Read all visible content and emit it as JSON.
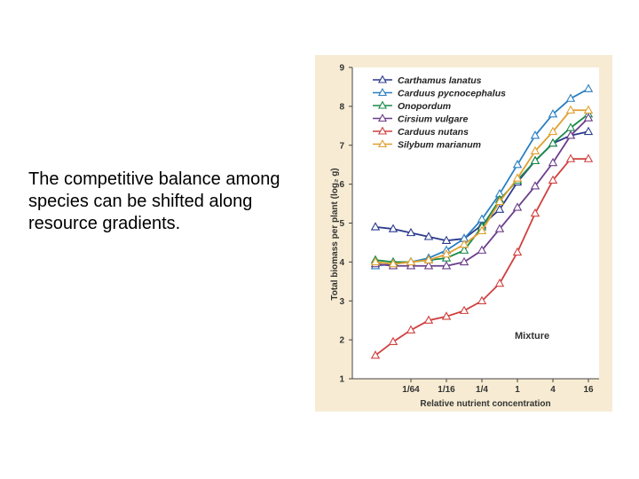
{
  "slide": {
    "text": "The competitive balance among species can be shifted along resource gradients."
  },
  "chart_data": {
    "type": "line",
    "title": "",
    "xlabel": "Relative nutrient concentration",
    "ylabel": "Total biomass per plant (log₂ g)",
    "x_scale": "log2",
    "x_ticks": [
      {
        "value": 0.015625,
        "label": "1/64"
      },
      {
        "value": 0.0625,
        "label": "1/16"
      },
      {
        "value": 0.25,
        "label": "1/4"
      },
      {
        "value": 1,
        "label": "1"
      },
      {
        "value": 4,
        "label": "4"
      },
      {
        "value": 16,
        "label": "16"
      }
    ],
    "ylim": [
      1,
      9
    ],
    "y_ticks": [
      1,
      2,
      3,
      4,
      5,
      6,
      7,
      8,
      9
    ],
    "grid": false,
    "legend_position": "top-left",
    "annotation": "Mixture",
    "x": [
      0.00390625,
      0.0078125,
      0.015625,
      0.03125,
      0.0625,
      0.125,
      0.25,
      0.5,
      1,
      2,
      4,
      8,
      16
    ],
    "series": [
      {
        "name": "Carthamus lanatus",
        "color": "#2a3a8c",
        "values": [
          4.9,
          4.85,
          4.75,
          4.65,
          4.55,
          4.6,
          4.95,
          5.35,
          6.05,
          6.6,
          7.05,
          7.25,
          7.35
        ]
      },
      {
        "name": "Carduus pycnocephalus",
        "color": "#2a7fc0",
        "values": [
          3.9,
          3.95,
          4.0,
          4.1,
          4.3,
          4.6,
          5.1,
          5.75,
          6.5,
          7.25,
          7.8,
          8.2,
          8.45
        ]
      },
      {
        "name": "Onopordum",
        "color": "#1a8a4a",
        "values": [
          4.05,
          4.0,
          4.0,
          4.05,
          4.1,
          4.3,
          4.9,
          5.6,
          6.1,
          6.6,
          7.05,
          7.45,
          7.8
        ]
      },
      {
        "name": "Cirsium vulgare",
        "color": "#6a3d8a",
        "values": [
          3.95,
          3.9,
          3.9,
          3.9,
          3.9,
          4.0,
          4.3,
          4.85,
          5.4,
          5.95,
          6.55,
          7.25,
          7.7
        ]
      },
      {
        "name": "Carduus nutans",
        "color": "#d0403f",
        "values": [
          1.6,
          1.95,
          2.25,
          2.5,
          2.6,
          2.75,
          3.0,
          3.45,
          4.25,
          5.25,
          6.1,
          6.65,
          6.65
        ]
      },
      {
        "name": "Silybum marianum",
        "color": "#e0a030",
        "values": [
          4.0,
          3.95,
          4.0,
          4.05,
          4.2,
          4.45,
          4.8,
          5.55,
          6.15,
          6.85,
          7.35,
          7.9,
          7.9
        ]
      }
    ]
  }
}
